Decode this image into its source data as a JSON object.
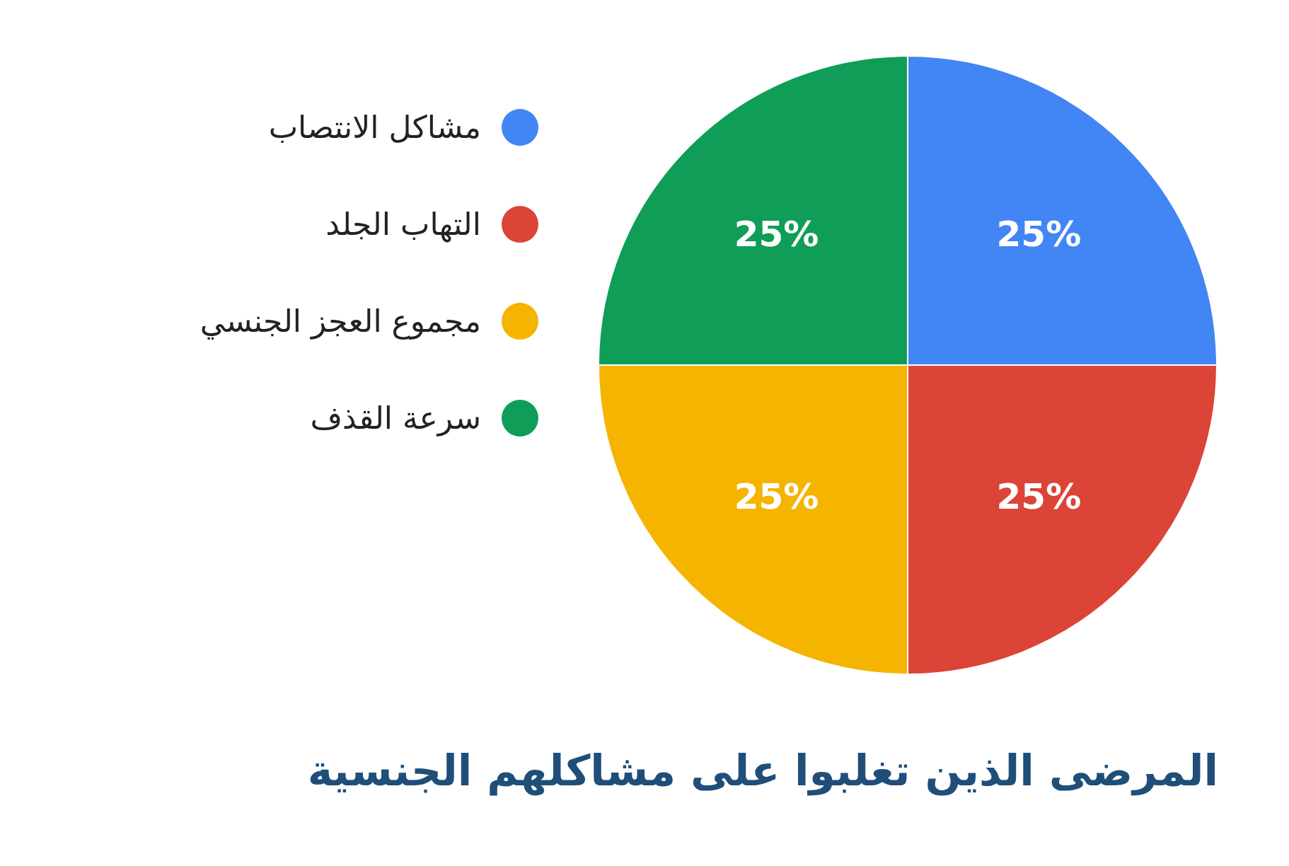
{
  "chart_data": {
    "type": "pie",
    "title": "المرضى الذين تغلبوا على مشاكلهم الجنسية",
    "categories": [
      "مشاكل الانتصاب",
      "التهاب الجلد",
      "مجموع العجز الجنسي",
      "سرعة القذف"
    ],
    "values": [
      25,
      25,
      25,
      25
    ],
    "colors": [
      "#4285f4",
      "#db4437",
      "#f4b400",
      "#0f9d58"
    ],
    "value_labels": [
      "25%",
      "25%",
      "25%",
      "25%"
    ],
    "legend": "left"
  }
}
